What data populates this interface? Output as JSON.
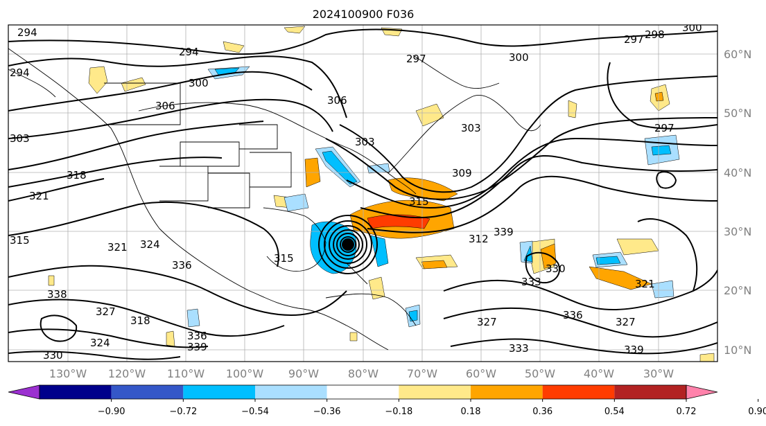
{
  "title": "2024100900 F036",
  "lat_labels": [
    "60°N",
    "50°N",
    "40°N",
    "30°N",
    "20°N",
    "10°N"
  ],
  "lon_labels": [
    "130°W",
    "120°W",
    "110°W",
    "100°W",
    "90°W",
    "80°W",
    "70°W",
    "60°W",
    "50°W",
    "40°W",
    "30°W"
  ],
  "colorbar": {
    "colors": [
      "#9b30d0",
      "#00008b",
      "#3457c8",
      "#00bfff",
      "#aadfff",
      "#ffffff",
      "#ffe98a",
      "#ffa500",
      "#ff3c00",
      "#b22222",
      "#ff82ab"
    ],
    "tick_labels": [
      "−0.90",
      "−0.72",
      "−0.54",
      "−0.36",
      "−0.18",
      "0.18",
      "0.36",
      "0.54",
      "0.72",
      "0.90"
    ]
  },
  "contour_labels": [
    "294",
    "294",
    "294",
    "300",
    "306",
    "303",
    "318",
    "321",
    "315",
    "321",
    "324",
    "336",
    "338",
    "327",
    "318",
    "324",
    "336",
    "339",
    "330",
    "315",
    "306",
    "303",
    "297",
    "300",
    "303",
    "309",
    "315",
    "312",
    "339",
    "327",
    "330",
    "333",
    "336",
    "333",
    "327",
    "321",
    "339",
    "297",
    "298",
    "297",
    "300"
  ]
}
